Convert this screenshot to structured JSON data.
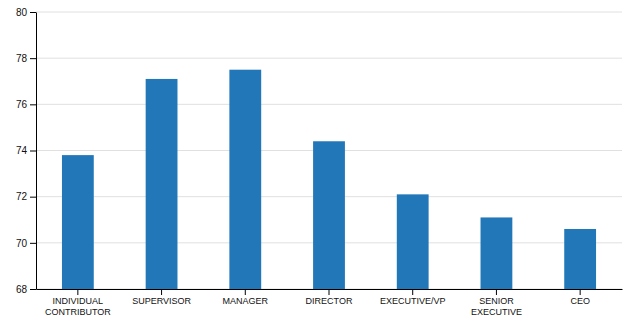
{
  "chart_data": {
    "type": "bar",
    "categories": [
      "INDIVIDUAL\nCONTRIBUTOR",
      "SUPERVISOR",
      "MANAGER",
      "DIRECTOR",
      "EXECUTIVE/VP",
      "SENIOR\nEXECUTIVE",
      "CEO"
    ],
    "values": [
      73.8,
      77.1,
      77.5,
      74.4,
      72.1,
      71.1,
      70.6
    ],
    "color": "#2177b8",
    "ylim": [
      68,
      80
    ],
    "yticks": [
      68,
      70,
      72,
      74,
      76,
      78,
      80
    ],
    "grid": true
  }
}
